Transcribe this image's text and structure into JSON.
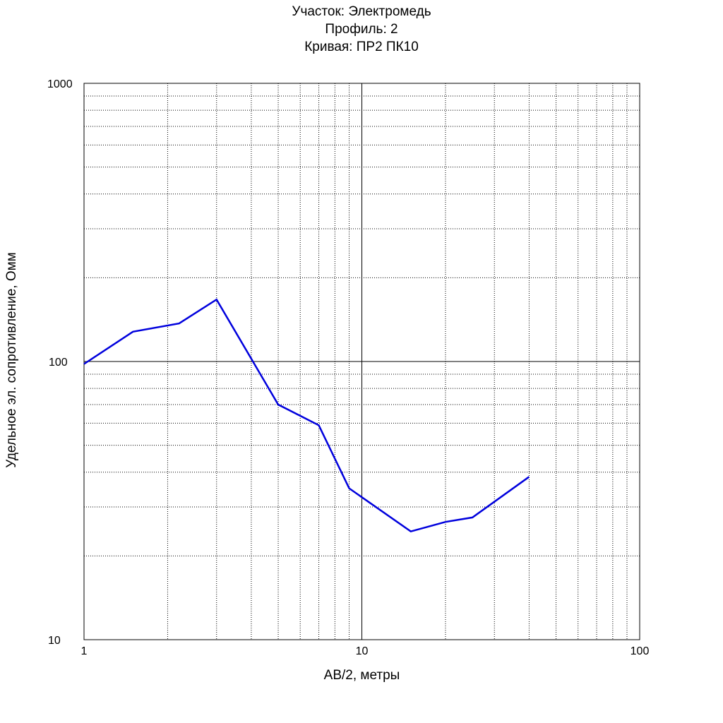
{
  "chart_data": {
    "type": "line",
    "title_lines": [
      "Участок: Электромедь",
      "Профиль: 2",
      "Кривая: ПР2 ПК10"
    ],
    "xlabel": "AB/2, метры",
    "ylabel": "Удельное эл. сопротивление, Омм",
    "x_scale": "log",
    "y_scale": "log",
    "xlim": [
      1,
      100
    ],
    "ylim": [
      10,
      1000
    ],
    "x_ticks": [
      {
        "value": 1,
        "label": "1"
      },
      {
        "value": 10,
        "label": "10"
      },
      {
        "value": 100,
        "label": "100"
      }
    ],
    "y_ticks": [
      {
        "value": 10,
        "label": "10"
      },
      {
        "value": 100,
        "label": "100"
      },
      {
        "value": 1000,
        "label": "1000"
      }
    ],
    "grid": true,
    "series": [
      {
        "color": "#0000dd",
        "x": [
          1,
          1.5,
          2.2,
          3,
          5,
          7,
          9,
          15,
          20,
          25,
          40
        ],
        "y": [
          98,
          128,
          137,
          167,
          70,
          59,
          35,
          24.5,
          26.5,
          27.5,
          38.5
        ]
      }
    ]
  }
}
